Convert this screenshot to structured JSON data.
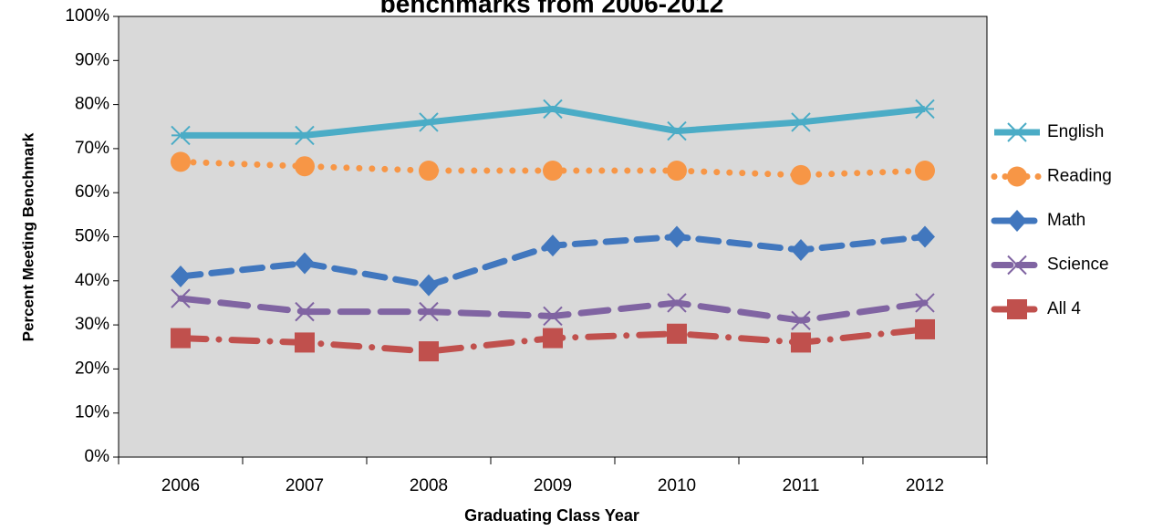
{
  "chart_data": {
    "type": "line",
    "title": "benchmarks from 2006-2012",
    "x_label": "Graduating Class Year",
    "y_label": "Percent Meeting Benchmark",
    "categories": [
      "2006",
      "2007",
      "2008",
      "2009",
      "2010",
      "2011",
      "2012"
    ],
    "ylim": [
      0,
      100
    ],
    "yticks": [
      {
        "value": 0,
        "label": "0%"
      },
      {
        "value": 10,
        "label": "10%"
      },
      {
        "value": 20,
        "label": "20%"
      },
      {
        "value": 30,
        "label": "30%"
      },
      {
        "value": 40,
        "label": "40%"
      },
      {
        "value": 50,
        "label": "50%"
      },
      {
        "value": 60,
        "label": "60%"
      },
      {
        "value": 70,
        "label": "70%"
      },
      {
        "value": 80,
        "label": "80%"
      },
      {
        "value": 90,
        "label": "90%"
      },
      {
        "value": 100,
        "label": "100%"
      }
    ],
    "grid": false,
    "legend": "right",
    "series": [
      {
        "name": "English",
        "color": "#4bacc6",
        "line_style": "solid",
        "marker": "asterisk",
        "values": [
          73,
          73,
          76,
          79,
          74,
          76,
          79
        ]
      },
      {
        "name": "Reading",
        "color": "#f79646",
        "line_style": "dotted",
        "marker": "circle",
        "values": [
          67,
          66,
          65,
          65,
          65,
          64,
          65
        ]
      },
      {
        "name": "Math",
        "color": "#4177be",
        "line_style": "dashed",
        "marker": "diamond",
        "values": [
          41,
          44,
          39,
          48,
          50,
          47,
          50
        ]
      },
      {
        "name": "Science",
        "color": "#8064a2",
        "line_style": "longdash",
        "marker": "x",
        "values": [
          36,
          33,
          33,
          32,
          35,
          31,
          35
        ]
      },
      {
        "name": "All 4",
        "color": "#c0504d",
        "line_style": "dashdot",
        "marker": "square",
        "values": [
          27,
          26,
          24,
          27,
          28,
          26,
          29
        ]
      }
    ]
  }
}
